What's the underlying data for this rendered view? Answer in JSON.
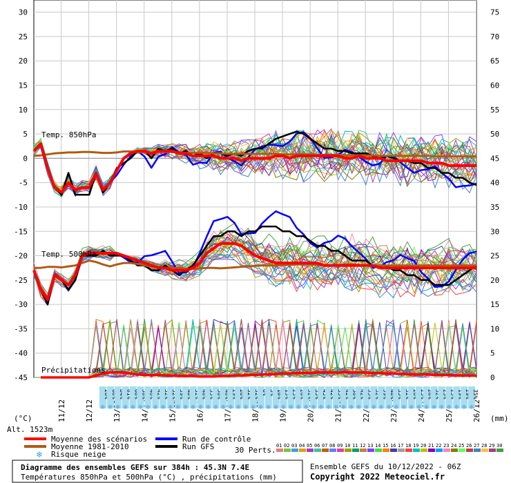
{
  "chart_data": {
    "type": "line",
    "title": "Diagramme des ensembles GEFS sur 384h : 45.3N 7.4E",
    "subtitle": "Températures 850hPa et 500hPa (°C) , précipitations (mm)",
    "left_unit": "(°C)",
    "right_unit": "(mm)",
    "altitude": "Alt. 1523m",
    "left_ticks": [
      30,
      25,
      20,
      15,
      10,
      5,
      0,
      -5,
      -10,
      -15,
      -20,
      -25,
      -30,
      -35,
      -40,
      -45
    ],
    "right_ticks": [
      75,
      70,
      65,
      60,
      55,
      50,
      45,
      40,
      35,
      30,
      25,
      20,
      15,
      10,
      5,
      0
    ],
    "date_labels": [
      "11/12",
      "12/12",
      "13/12",
      "14/12",
      "15/12",
      "16/12",
      "17/12",
      "18/12",
      "19/12",
      "20/12",
      "21/12",
      "22/12",
      "23/12",
      "24/12",
      "25/12",
      "26/12"
    ],
    "section_labels": {
      "t850": "Temp. 850hPa",
      "t500": "Temp. 500hPa",
      "precip": "Précipitations"
    },
    "snow_risk": [
      "26%",
      "68%",
      "84%",
      "81%",
      "68%",
      "58%",
      "48%",
      "42%",
      "52%",
      "52%",
      "39%",
      "48%",
      "52%",
      "48%",
      "55%",
      "58%",
      "48%",
      "29%",
      "26%",
      "32%",
      "32%",
      "6%",
      "3%",
      "10%",
      "13%",
      "23%",
      "26%",
      "32%",
      "35%",
      "45%",
      "42%",
      "35%",
      "42%",
      "58%",
      "42%",
      "35%",
      "32%",
      "39%",
      "48%",
      "35%",
      "32%",
      "26%",
      "23%",
      "26%",
      "32%",
      "23%",
      "23%",
      "19%",
      "29%",
      "35%"
    ],
    "series": [
      {
        "name": "Moyenne des scénarios",
        "color": "#ff0000",
        "t850": [
          1.5,
          3,
          -2,
          -6,
          -7,
          -5,
          -6.5,
          -6,
          -6,
          -3,
          -6.5,
          -5,
          -2.5,
          0,
          1,
          1.5,
          1.5,
          1,
          1.5,
          1.5,
          1.5,
          1,
          1,
          0.5,
          0.5,
          0.5,
          0.5,
          0,
          0,
          0,
          -0.5,
          0,
          0,
          0,
          0,
          0.5,
          0.5,
          0,
          0.5,
          0.5,
          0.5,
          0.5,
          0.5,
          0.5,
          0.5,
          0,
          0,
          0.5,
          0,
          0,
          0,
          -0.5,
          -0.5,
          -0.5,
          -0.5,
          -0.5,
          -0.5,
          -1,
          -1,
          -1,
          -1.5,
          -1.5,
          -1.5,
          -1.5,
          -1.5
        ],
        "t500": [
          -23,
          -27,
          -29,
          -24,
          -25,
          -26,
          -24,
          -20,
          -19.5,
          -19.5,
          -19.5,
          -19.5,
          -19.5,
          -20,
          -20.5,
          -21,
          -21.5,
          -22,
          -22.5,
          -22.5,
          -23,
          -23,
          -23,
          -22.5,
          -21.5,
          -19.5,
          -18.5,
          -17.5,
          -17.5,
          -17.5,
          -18,
          -19,
          -20,
          -20.5,
          -21,
          -21.5,
          -21.5,
          -21.5,
          -21.5,
          -21.5,
          -21.5,
          -21.5,
          -22,
          -22,
          -22,
          -22,
          -22,
          -22,
          -22,
          -22,
          -22.5,
          -22.5,
          -22.5,
          -22.5,
          -22.5,
          -22.5,
          -22.5,
          -22.5,
          -22.5,
          -22.5,
          -22.5,
          -22.5,
          -22.5,
          -22.5,
          -22.5
        ],
        "precip": [
          0,
          0,
          0,
          0,
          0,
          0,
          0,
          0,
          0,
          0.4,
          0.8,
          1,
          1.1,
          1,
          0.8,
          0.6,
          0.5,
          0.5,
          0.5,
          0.4,
          0.4,
          0.3,
          0.3,
          0.3,
          0.2,
          0.2,
          0.2,
          0.3,
          0.3,
          0.4,
          0.4,
          0.5,
          0.5,
          0.6,
          0.6,
          0.7,
          0.8,
          0.8,
          0.9,
          0.9,
          0.9,
          1,
          1,
          1,
          1,
          1.1,
          1,
          1,
          1,
          0.9,
          0.9,
          0.8,
          0.8,
          0.7,
          0.7,
          0.6,
          0.6,
          0.6,
          0.5,
          0.5,
          0.5,
          0.4,
          0.4,
          0.4,
          0.4
        ]
      },
      {
        "name": "Moyenne 1981-2010",
        "color": "#b05a10",
        "t850": [
          0.5,
          0.6,
          0.8,
          1,
          1.1,
          1.2,
          1.2,
          1.3,
          1.3,
          1.2,
          1.1,
          1.1,
          1.2,
          1.4,
          1.4,
          1.3,
          1.2,
          1.1,
          1.2,
          1.3,
          1.3,
          1.2,
          1.1,
          1.1,
          1.1,
          1.1,
          1,
          1,
          0.9,
          0.9,
          0.9,
          0.9,
          0.9,
          0.9,
          0.9,
          0.9,
          0.8,
          0.8,
          0.8,
          0.8,
          0.8,
          0.7,
          0.7,
          0.7,
          0.7,
          0.6,
          0.6,
          0.6,
          0.6,
          0.6,
          0.5,
          0.5,
          0.5,
          0.5,
          0.5,
          0.5,
          0.5,
          0.5,
          0.4,
          0.4,
          0.4,
          0.4,
          0.4,
          0.4,
          0.4
        ],
        "t500": [
          -22.5,
          -22.5,
          -22.3,
          -22.3,
          -22.4,
          -22.2,
          -22,
          -21.5,
          -21,
          -21.3,
          -21.8,
          -22.2,
          -21.8,
          -21.5,
          -21.5,
          -21.7,
          -22,
          -22.2,
          -22.4,
          -22.5,
          -22.5,
          -22.5,
          -22.7,
          -22.7,
          -22.6,
          -22.5,
          -22.5,
          -22.6,
          -22.5,
          -22.4,
          -22.3,
          -22.2,
          -22.1,
          -22,
          -22,
          -22,
          -21.9,
          -21.9,
          -21.8,
          -21.8,
          -21.8,
          -21.9,
          -22,
          -22,
          -21.9,
          -21.8,
          -21.8,
          -21.9,
          -22,
          -22,
          -22,
          -22,
          -22,
          -22,
          -22,
          -22,
          -22,
          -22,
          -22,
          -22,
          -22,
          -22,
          -22,
          -22,
          -22
        ]
      },
      {
        "name": "Run de contrôle",
        "color": "#0000ff"
      },
      {
        "name": "Run GFS",
        "color": "#000000",
        "t850": [
          1.5,
          3,
          -2,
          -6,
          -7.5,
          -3,
          -7.5,
          -7.5,
          -7.5,
          -3,
          -7,
          -5,
          -2,
          -1,
          0,
          1.5,
          1.5,
          0,
          2,
          1.5,
          2,
          1,
          1.5,
          0.5,
          1,
          0,
          1,
          1,
          0.5,
          1,
          0.5,
          1.5,
          2,
          2,
          3,
          4,
          4.5,
          5,
          5.5,
          5,
          4,
          3,
          2,
          2,
          1.5,
          1.5,
          1,
          1,
          1,
          0.5,
          0,
          0.5,
          0,
          -0.5,
          -0.5,
          -1,
          -1,
          -2,
          -2,
          -3,
          -3,
          -4,
          -4,
          -5,
          -5.5
        ],
        "t500": [
          -23,
          -27,
          -30,
          -24,
          -25,
          -27,
          -25,
          -20,
          -20,
          -20,
          -19,
          -20,
          -20,
          -20,
          -21,
          -22,
          -22,
          -23,
          -23,
          -22,
          -23,
          -24,
          -23,
          -22,
          -20,
          -18,
          -16,
          -16,
          -15,
          -15,
          -16,
          -15,
          -15,
          -14,
          -14,
          -14,
          -15,
          -15,
          -16,
          -16,
          -17,
          -18,
          -18,
          -19,
          -19,
          -20,
          -21,
          -21,
          -21,
          -22,
          -22,
          -22,
          -23,
          -23,
          -24,
          -24,
          -25,
          -25,
          -26,
          -26,
          -26,
          -25,
          -24,
          -23,
          -22
        ]
      }
    ],
    "perts_label": "30 Perts.",
    "perts_numbers": [
      "01",
      "02",
      "03",
      "04",
      "05",
      "06",
      "07",
      "08",
      "09",
      "10",
      "11",
      "12",
      "13",
      "14",
      "15",
      "16",
      "17",
      "18",
      "19",
      "20",
      "21",
      "22",
      "23",
      "24",
      "25",
      "26",
      "27",
      "28",
      "29",
      "30"
    ],
    "perts_colors": [
      "#e08080",
      "#80c040",
      "#40a0e0",
      "#e0a000",
      "#a040c0",
      "#40c0a0",
      "#c06000",
      "#6080ff",
      "#e040a0",
      "#a0a000",
      "#00a060",
      "#c08040",
      "#8040ff",
      "#40e040",
      "#ff8000",
      "#4040a0",
      "#a0a0a0",
      "#ff4040",
      "#00c0c0",
      "#c0c000",
      "#8000c0",
      "#00a0ff",
      "#ff80c0",
      "#808000",
      "#60ff60",
      "#c04040",
      "#4080c0",
      "#ffc040",
      "#a04080",
      "#40a040"
    ],
    "ensemble_info": "Ensemble GEFS du 10/12/2022 - 06Z",
    "copyright": "Copyright 2022 Meteociel.fr",
    "legend": {
      "mean": "Moyenne des scénarios",
      "clim": "Moyenne 1981-2010",
      "snow": "Risque neige",
      "control": "Run de contrôle",
      "gfs": "Run GFS"
    }
  }
}
